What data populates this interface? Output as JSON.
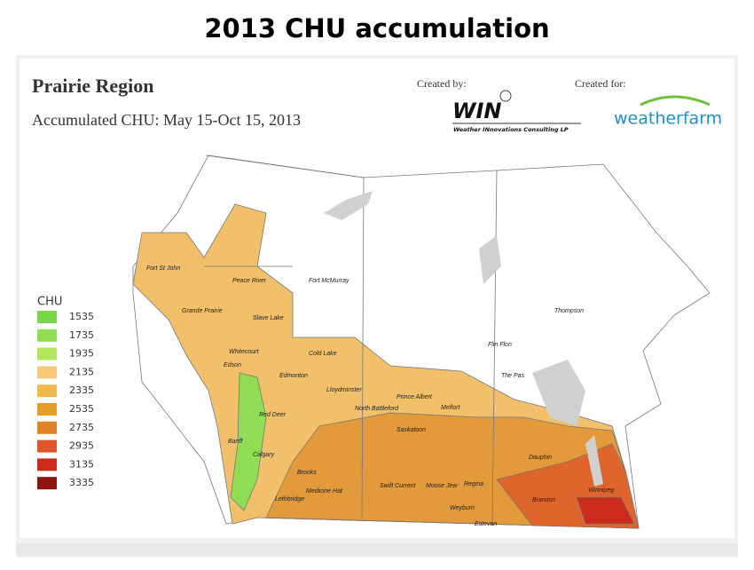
{
  "title": "2013 CHU accumulation",
  "map": {
    "heading": "Prairie Region",
    "subtitle": "Accumulated CHU: May 15-Oct 15, 2013"
  },
  "credits": {
    "created_by": "Created by:",
    "win_logo": "WIN",
    "win_name": "Weather INnovations Consulting LP",
    "created_for": "Created for:",
    "weatherfarm": "weatherfarm"
  },
  "legend": {
    "title": "CHU",
    "items": [
      {
        "value": 1535,
        "color": "#7cd64a"
      },
      {
        "value": 1735,
        "color": "#8fdc55"
      },
      {
        "value": 1935,
        "color": "#b3e65e"
      },
      {
        "value": 2135,
        "color": "#f7c97a"
      },
      {
        "value": 2335,
        "color": "#f0b84a"
      },
      {
        "value": 2535,
        "color": "#e49d2a"
      },
      {
        "value": 2735,
        "color": "#e0822a"
      },
      {
        "value": 2935,
        "color": "#e0562c"
      },
      {
        "value": 3135,
        "color": "#cc2a1c"
      },
      {
        "value": 3335,
        "color": "#8e1414"
      }
    ]
  },
  "places": [
    "Fort St John",
    "Peace River",
    "Fort McMurray",
    "Grande Prairie",
    "Slave Lake",
    "Thompson",
    "Whitecourt",
    "Cold Lake",
    "Flin Flon",
    "Edson",
    "Edmonton",
    "The Pas",
    "Lloydminster",
    "Prince Albert",
    "North Battleford",
    "Melfort",
    "Red Deer",
    "Saskatoon",
    "Dauphin",
    "Banff",
    "Calgary",
    "Brooks",
    "Swift Current",
    "Moose Jew",
    "Regina",
    "Medicine Hat",
    "Lethbridge",
    "Weyburn",
    "Brandon",
    "Winnipeg",
    "Estevan"
  ]
}
